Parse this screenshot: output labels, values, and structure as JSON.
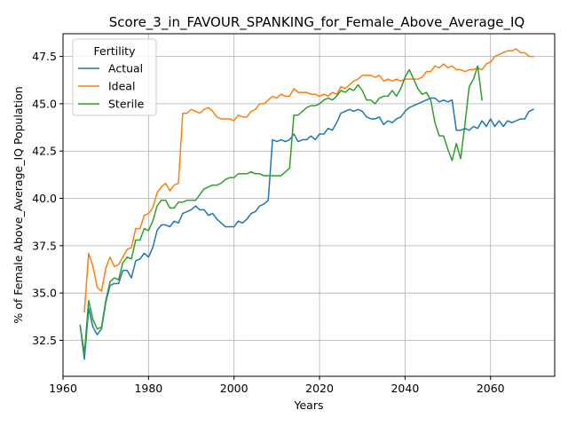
{
  "chart_data": {
    "type": "line",
    "title": "Score_3_in_FAVOUR_SPANKING_for_Female_Above_Average_IQ",
    "xlabel": "Years",
    "ylabel": "% of Female Above_Average_IQ Population",
    "xlim": [
      1960,
      2075
    ],
    "ylim": [
      30.6,
      48.7
    ],
    "xticks": [
      1960,
      1980,
      2000,
      2020,
      2040,
      2060
    ],
    "yticks": [
      32.5,
      35.0,
      37.5,
      40.0,
      42.5,
      45.0,
      47.5
    ],
    "grid": true,
    "legend": {
      "title": "Fertility",
      "placement": "upper-left"
    },
    "series": [
      {
        "name": "Actual",
        "color": "#1f77b4",
        "x": [
          1964,
          1965,
          1966,
          1967,
          1968,
          1969,
          1970,
          1971,
          1972,
          1973,
          1974,
          1975,
          1976,
          1977,
          1978,
          1979,
          1980,
          1981,
          1982,
          1983,
          1984,
          1985,
          1986,
          1987,
          1988,
          1989,
          1990,
          1991,
          1992,
          1993,
          1994,
          1995,
          1996,
          1997,
          1998,
          1999,
          2000,
          2001,
          2002,
          2003,
          2004,
          2005,
          2006,
          2007,
          2008,
          2009,
          2010,
          2011,
          2012,
          2013,
          2014,
          2015,
          2016,
          2017,
          2018,
          2019,
          2020,
          2021,
          2022,
          2023,
          2024,
          2025,
          2026,
          2027,
          2028,
          2029,
          2030,
          2031,
          2032,
          2033,
          2034,
          2035,
          2036,
          2037,
          2038,
          2039,
          2040,
          2041,
          2042,
          2043,
          2044,
          2045,
          2046,
          2047,
          2048,
          2049,
          2050,
          2051,
          2052,
          2053,
          2054,
          2055,
          2056,
          2057,
          2058,
          2059,
          2060,
          2061,
          2062,
          2063,
          2064,
          2065,
          2066,
          2067,
          2068,
          2069,
          2070
        ],
        "y": [
          33.3,
          31.5,
          34.2,
          33.2,
          32.8,
          33.1,
          34.5,
          35.4,
          35.5,
          35.5,
          36.2,
          36.2,
          35.8,
          36.7,
          36.8,
          37.1,
          36.9,
          37.4,
          38.3,
          38.6,
          38.6,
          38.5,
          38.8,
          38.7,
          39.2,
          39.3,
          39.4,
          39.6,
          39.4,
          39.4,
          39.1,
          39.2,
          38.9,
          38.7,
          38.5,
          38.5,
          38.5,
          38.8,
          38.7,
          38.9,
          39.2,
          39.3,
          39.6,
          39.7,
          39.9,
          43.1,
          43.0,
          43.1,
          43.0,
          43.1,
          43.4,
          43.0,
          43.1,
          43.1,
          43.3,
          43.1,
          43.4,
          43.4,
          43.7,
          43.6,
          44.0,
          44.5,
          44.6,
          44.7,
          44.6,
          44.7,
          44.6,
          44.3,
          44.2,
          44.2,
          44.3,
          43.9,
          44.1,
          44.0,
          44.2,
          44.3,
          44.6,
          44.8,
          44.9,
          45.0,
          45.1,
          45.2,
          45.3,
          45.3,
          45.1,
          45.2,
          45.1,
          45.2,
          43.6,
          43.6,
          43.7,
          43.6,
          43.8,
          43.7,
          44.1,
          43.8,
          44.2,
          43.8,
          44.1,
          43.8,
          44.1,
          44.0,
          44.1,
          44.2,
          44.2,
          44.6,
          44.7
        ]
      },
      {
        "name": "Ideal",
        "color": "#ff7f0e",
        "x": [
          1965,
          1966,
          1967,
          1968,
          1969,
          1970,
          1971,
          1972,
          1973,
          1974,
          1975,
          1976,
          1977,
          1978,
          1979,
          1980,
          1981,
          1982,
          1983,
          1984,
          1985,
          1986,
          1987,
          1988,
          1989,
          1990,
          1991,
          1992,
          1993,
          1994,
          1995,
          1996,
          1997,
          1998,
          1999,
          2000,
          2001,
          2002,
          2003,
          2004,
          2005,
          2006,
          2007,
          2008,
          2009,
          2010,
          2011,
          2012,
          2013,
          2014,
          2015,
          2016,
          2017,
          2018,
          2019,
          2020,
          2021,
          2022,
          2023,
          2024,
          2025,
          2026,
          2027,
          2028,
          2029,
          2030,
          2031,
          2032,
          2033,
          2034,
          2035,
          2036,
          2037,
          2038,
          2039,
          2040,
          2041,
          2042,
          2043,
          2044,
          2045,
          2046,
          2047,
          2048,
          2049,
          2050,
          2051,
          2052,
          2053,
          2054,
          2055,
          2056,
          2057,
          2058,
          2059,
          2060,
          2061,
          2062,
          2063,
          2064,
          2065,
          2066,
          2067,
          2068,
          2069,
          2070
        ],
        "y": [
          34.0,
          37.1,
          36.4,
          35.3,
          35.1,
          36.3,
          36.9,
          36.4,
          36.5,
          36.9,
          37.3,
          37.4,
          38.4,
          38.4,
          39.1,
          39.2,
          39.5,
          40.3,
          40.6,
          40.8,
          40.4,
          40.7,
          40.8,
          44.5,
          44.5,
          44.7,
          44.6,
          44.5,
          44.7,
          44.8,
          44.6,
          44.3,
          44.2,
          44.2,
          44.2,
          44.1,
          44.4,
          44.3,
          44.3,
          44.6,
          44.7,
          45.0,
          45.0,
          45.2,
          45.4,
          45.3,
          45.5,
          45.4,
          45.4,
          45.8,
          45.6,
          45.6,
          45.6,
          45.5,
          45.5,
          45.4,
          45.5,
          45.4,
          45.6,
          45.5,
          45.9,
          45.8,
          46.0,
          46.2,
          46.3,
          46.5,
          46.5,
          46.5,
          46.4,
          46.5,
          46.2,
          46.3,
          46.2,
          46.3,
          46.2,
          46.3,
          46.3,
          46.3,
          46.3,
          46.4,
          46.7,
          46.7,
          47.0,
          46.9,
          47.1,
          46.9,
          47.0,
          46.8,
          46.8,
          46.7,
          46.8,
          46.8,
          46.9,
          46.8,
          47.1,
          47.2,
          47.5,
          47.6,
          47.7,
          47.8,
          47.8,
          47.9,
          47.7,
          47.7,
          47.5,
          47.5
        ]
      },
      {
        "name": "Sterile",
        "color": "#2ca02c",
        "x": [
          1964,
          1965,
          1966,
          1967,
          1968,
          1969,
          1970,
          1971,
          1972,
          1973,
          1974,
          1975,
          1976,
          1977,
          1978,
          1979,
          1980,
          1981,
          1982,
          1983,
          1984,
          1985,
          1986,
          1987,
          1988,
          1989,
          1990,
          1991,
          1992,
          1993,
          1994,
          1995,
          1996,
          1997,
          1998,
          1999,
          2000,
          2001,
          2002,
          2003,
          2004,
          2005,
          2006,
          2007,
          2008,
          2009,
          2010,
          2011,
          2012,
          2013,
          2014,
          2015,
          2016,
          2017,
          2018,
          2019,
          2020,
          2021,
          2022,
          2023,
          2024,
          2025,
          2026,
          2027,
          2028,
          2029,
          2030,
          2031,
          2032,
          2033,
          2034,
          2035,
          2036,
          2037,
          2038,
          2039,
          2040,
          2041,
          2042,
          2043,
          2044,
          2045,
          2046,
          2047,
          2048,
          2049,
          2050,
          2051,
          2052,
          2053,
          2054,
          2055,
          2056,
          2057,
          2058
        ],
        "y": [
          33.3,
          31.8,
          34.6,
          33.6,
          33.1,
          33.2,
          34.6,
          35.6,
          35.8,
          35.7,
          36.6,
          36.9,
          36.8,
          37.8,
          37.8,
          38.4,
          38.3,
          38.8,
          39.6,
          39.9,
          39.9,
          39.5,
          39.5,
          39.8,
          39.8,
          39.9,
          39.9,
          39.9,
          40.2,
          40.5,
          40.6,
          40.7,
          40.7,
          40.8,
          41.0,
          41.1,
          41.1,
          41.3,
          41.3,
          41.3,
          41.4,
          41.3,
          41.3,
          41.2,
          41.2,
          41.2,
          41.2,
          41.2,
          41.4,
          41.6,
          44.4,
          44.4,
          44.6,
          44.8,
          44.9,
          44.9,
          45.0,
          45.2,
          45.3,
          45.2,
          45.4,
          45.7,
          45.6,
          45.8,
          45.7,
          46.0,
          45.7,
          45.2,
          45.2,
          45.0,
          45.3,
          45.4,
          45.4,
          45.7,
          45.4,
          45.8,
          46.4,
          46.8,
          46.3,
          45.8,
          45.5,
          45.6,
          45.2,
          44.0,
          43.3,
          43.3,
          42.6,
          42.0,
          42.9,
          42.1,
          43.9,
          45.9,
          46.3,
          47.0,
          45.2
        ]
      }
    ]
  }
}
